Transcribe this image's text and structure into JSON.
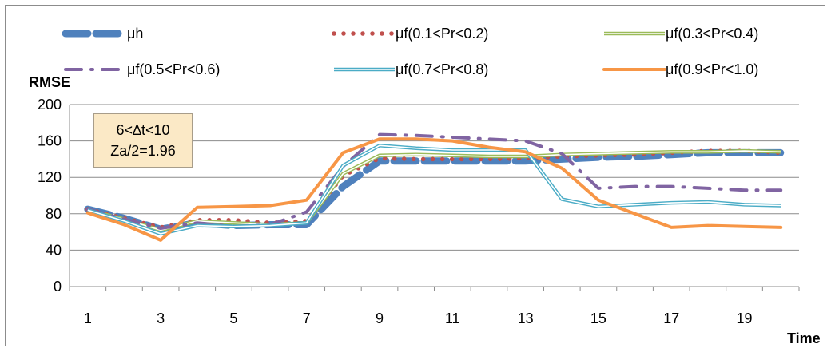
{
  "chart_data": {
    "type": "line",
    "title": "",
    "xlabel": "Time",
    "ylabel": "RMSE",
    "x": [
      1,
      2,
      3,
      4,
      5,
      6,
      7,
      8,
      9,
      10,
      11,
      12,
      13,
      14,
      15,
      16,
      17,
      18,
      19,
      20
    ],
    "x_tick_labels": [
      "1",
      "3",
      "5",
      "7",
      "9",
      "11",
      "13",
      "15",
      "17",
      "19"
    ],
    "y_ticks": [
      0,
      40,
      80,
      120,
      160,
      200
    ],
    "ylim": [
      0,
      200
    ],
    "grid": "horizontal",
    "legend_position": "top",
    "annotation": {
      "line1": "6<∆t<10",
      "line2": "Za/2=1.96"
    },
    "series": [
      {
        "name": "μh",
        "style": "thick-dash",
        "color": "#4f81bd",
        "values": [
          85,
          75,
          63,
          70,
          67,
          68,
          68,
          110,
          138,
          138,
          138,
          138,
          138,
          140,
          142,
          143,
          145,
          147,
          147,
          147
        ]
      },
      {
        "name": "μf(0.1<Pr<0.2)",
        "style": "dots",
        "color": "#c0504d",
        "values": [
          85,
          75,
          65,
          73,
          73,
          70,
          72,
          122,
          141,
          140,
          140,
          140,
          141,
          143,
          144,
          145,
          147,
          149,
          149,
          147
        ]
      },
      {
        "name": "μf(0.3<Pr<0.4)",
        "style": "double",
        "color": "#9bbb59",
        "values": [
          84,
          74,
          62,
          72,
          70,
          68,
          70,
          124,
          144,
          145,
          144,
          143,
          143,
          145,
          146,
          147,
          148,
          148,
          149,
          148
        ]
      },
      {
        "name": "μf(0.5<Pr<0.6)",
        "style": "dash-dot",
        "color": "#8064a2",
        "values": [
          85,
          74,
          64,
          70,
          66,
          68,
          82,
          132,
          167,
          166,
          164,
          162,
          160,
          146,
          108,
          110,
          110,
          108,
          106,
          106
        ]
      },
      {
        "name": "μf(0.7<Pr<0.8)",
        "style": "double",
        "color": "#4bacc6",
        "values": [
          84,
          72,
          58,
          67,
          66,
          67,
          70,
          133,
          155,
          152,
          150,
          150,
          150,
          96,
          88,
          90,
          92,
          93,
          90,
          89
        ]
      },
      {
        "name": "μf(0.9<Pr<1.0)",
        "style": "solid",
        "color": "#f79646",
        "values": [
          81,
          68,
          51,
          87,
          88,
          89,
          95,
          147,
          162,
          162,
          160,
          153,
          148,
          130,
          95,
          80,
          65,
          67,
          66,
          65
        ]
      }
    ]
  }
}
